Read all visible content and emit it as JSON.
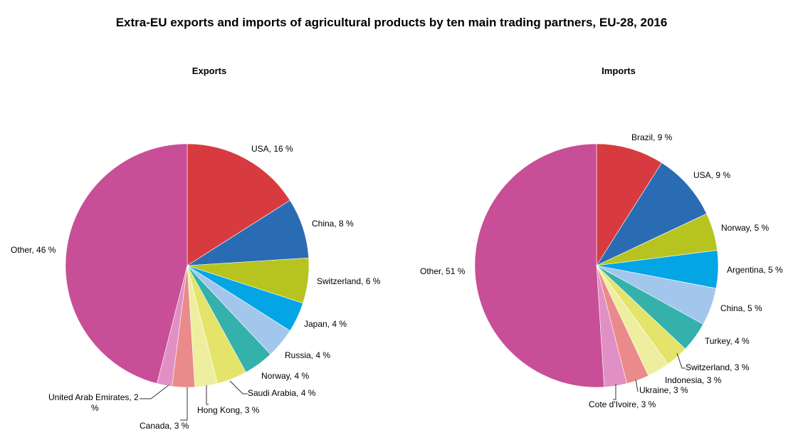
{
  "title": "Extra-EU exports and imports of agricultural products by ten main trading partners, EU-28, 2016",
  "chart_data": [
    {
      "type": "pie",
      "title": "Exports",
      "categories": [
        "USA",
        "China",
        "Switzerland",
        "Japan",
        "Russia",
        "Norway",
        "Saudi Arabia",
        "Hong Kong",
        "Canada",
        "United Arab Emirates",
        "Other"
      ],
      "values": [
        16,
        8,
        6,
        4,
        4,
        4,
        4,
        3,
        3,
        2,
        46
      ],
      "labels": [
        "USA, 16 %",
        "China, 8 %",
        "Switzerland, 6 %",
        "Japan, 4 %",
        "Russia, 4 %",
        "Norway, 4 %",
        "Saudi Arabia, 4 %",
        "Hong Kong, 3 %",
        "Canada, 3 %",
        "United Arab Emirates, 2 %",
        "Other, 46 %"
      ],
      "colors": [
        "#d83b3f",
        "#2a6cb4",
        "#b7c41f",
        "#04a5e5",
        "#a3c7ec",
        "#34b1ab",
        "#e4e36a",
        "#eeef9e",
        "#ea8a8b",
        "#e090c4",
        "#c84e97"
      ]
    },
    {
      "type": "pie",
      "title": "Imports",
      "categories": [
        "Brazil",
        "USA",
        "Norway",
        "Argentina",
        "China",
        "Turkey",
        "Switzerland",
        "Indonesia",
        "Ukraine",
        "Cote d'Ivoire",
        "Other"
      ],
      "values": [
        9,
        9,
        5,
        5,
        5,
        4,
        3,
        3,
        3,
        3,
        51
      ],
      "labels": [
        "Brazil, 9 %",
        "USA, 9 %",
        "Norway, 5 %",
        "Argentina, 5 %",
        "China, 5 %",
        "Turkey, 4 %",
        "Switzerland, 3 %",
        "Indonesia, 3 %",
        "Ukraine, 3 %",
        "Cote d'Ivoire, 3 %",
        "Other, 51 %"
      ],
      "colors": [
        "#d83b3f",
        "#2a6cb4",
        "#b7c41f",
        "#04a5e5",
        "#a3c7ec",
        "#34b1ab",
        "#e4e36a",
        "#eeef9e",
        "#ea8a8b",
        "#e090c4",
        "#c84e97"
      ]
    }
  ]
}
